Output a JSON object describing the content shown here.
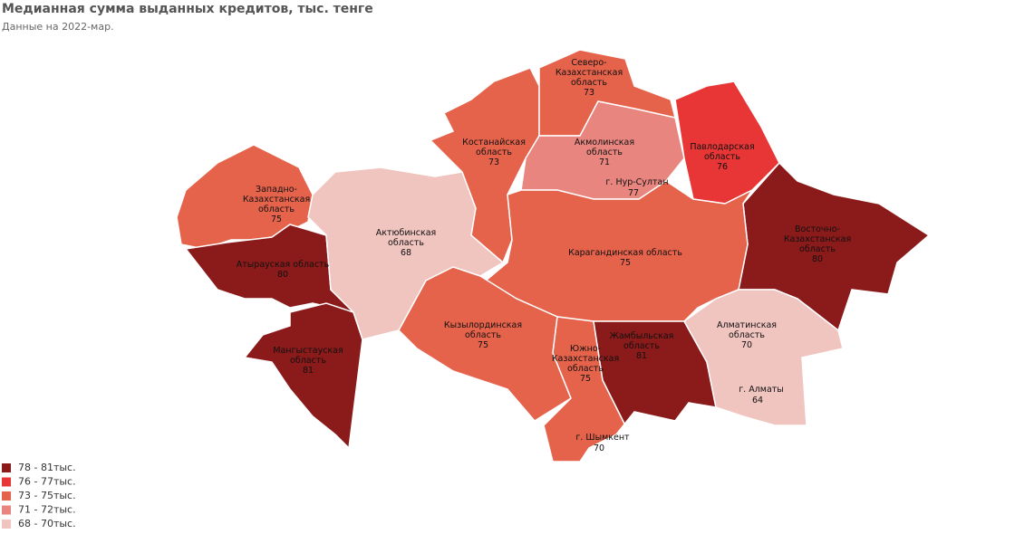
{
  "header": {
    "title": "Медианная сумма выданных кредитов, тыс. тенге",
    "subtitle": "Данные на 2022-мар."
  },
  "map": {
    "regions": [
      {
        "name_lines": [
          "Западно-",
          "Казахстанская",
          "область"
        ],
        "value": 75,
        "color": "#e5624b"
      },
      {
        "name_lines": [
          "Атырауская область"
        ],
        "value": 80,
        "color": "#8b1a1a"
      },
      {
        "name_lines": [
          "Мангыстауская",
          "область"
        ],
        "value": 81,
        "color": "#8b1a1a"
      },
      {
        "name_lines": [
          "Актюбинская",
          "область"
        ],
        "value": 68,
        "color": "#f0c4bf"
      },
      {
        "name_lines": [
          "Костанайская",
          "область"
        ],
        "value": 73,
        "color": "#e5624b"
      },
      {
        "name_lines": [
          "Северо-",
          "Казахстанская",
          "область"
        ],
        "value": 73,
        "color": "#e5624b"
      },
      {
        "name_lines": [
          "Акмолинская",
          "область"
        ],
        "value": 71,
        "color": "#e8857f"
      },
      {
        "name_lines": [
          "Павлодарская",
          "область"
        ],
        "value": 76,
        "color": "#e83535"
      },
      {
        "name_lines": [
          "Восточно-",
          "Казахстанская",
          "область"
        ],
        "value": 80,
        "color": "#8b1a1a"
      },
      {
        "name_lines": [
          "Карагандинская область"
        ],
        "value": 75,
        "color": "#e5624b"
      },
      {
        "name_lines": [
          "Кызылординская",
          "область"
        ],
        "value": 75,
        "color": "#e5624b"
      },
      {
        "name_lines": [
          "Южно-",
          "Казахстанская",
          "область"
        ],
        "value": 75,
        "color": "#e5624b"
      },
      {
        "name_lines": [
          "Жамбыльская",
          "область"
        ],
        "value": 81,
        "color": "#8b1a1a"
      },
      {
        "name_lines": [
          "Алматинская",
          "область"
        ],
        "value": 70,
        "color": "#f0c4bf"
      }
    ],
    "cities": [
      {
        "name": "г. Нур-Султан",
        "value": 77
      },
      {
        "name": "г. Алматы",
        "value": 64
      },
      {
        "name": "г. Шымкент",
        "value": 70
      }
    ]
  },
  "legend": {
    "items": [
      {
        "label": "78 - 81тыс.",
        "color": "#8b1a1a"
      },
      {
        "label": "76 - 77тыс.",
        "color": "#e83535"
      },
      {
        "label": "73 - 75тыс.",
        "color": "#e5624b"
      },
      {
        "label": "71 - 72тыс.",
        "color": "#e8857f"
      },
      {
        "label": "68 - 70тыс.",
        "color": "#f0c4bf"
      }
    ]
  }
}
